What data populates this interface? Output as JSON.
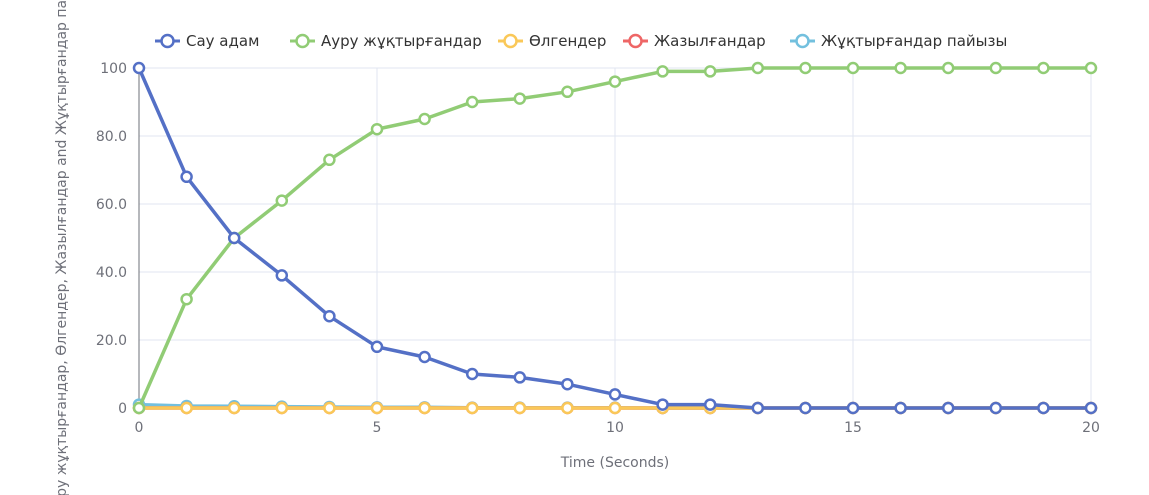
{
  "chart_data": {
    "type": "line",
    "xlabel": "Time (Seconds)",
    "ylabel": "Ауру жұқтырғандар, Өлгендер, Жазылғандар and Жұқтырғандар пайызы",
    "xlim": [
      0,
      20
    ],
    "ylim": [
      0,
      100
    ],
    "x_ticks": [
      "0",
      "5",
      "10",
      "15",
      "20"
    ],
    "y_ticks": [
      "0",
      "20.0",
      "40.0",
      "60.0",
      "80.0",
      "100"
    ],
    "grid": true,
    "legend_position": "top",
    "x": [
      0,
      1,
      2,
      3,
      4,
      5,
      6,
      7,
      8,
      9,
      10,
      11,
      12,
      13,
      14,
      15,
      16,
      17,
      18,
      19,
      20
    ],
    "series": [
      {
        "name": "Сау адам",
        "color": "#5470c6",
        "values": [
          100,
          68,
          50,
          39,
          27,
          18,
          15,
          10,
          9,
          7,
          4,
          1,
          1,
          0,
          0,
          0,
          0,
          0,
          0,
          0,
          0
        ]
      },
      {
        "name": "Ауру жұқтырғандар",
        "color": "#91cc75",
        "values": [
          0,
          32,
          50,
          61,
          73,
          82,
          85,
          90,
          91,
          93,
          96,
          99,
          99,
          100,
          100,
          100,
          100,
          100,
          100,
          100,
          100
        ]
      },
      {
        "name": "Өлгендер",
        "color": "#fac858",
        "values": [
          0,
          0,
          0,
          0,
          0,
          0,
          0,
          0,
          0,
          0,
          0,
          0,
          0,
          0,
          0,
          0,
          0,
          0,
          0,
          0,
          0
        ]
      },
      {
        "name": "Жазылғандар",
        "color": "#ee6666",
        "values": [
          0,
          0,
          0,
          0,
          0,
          0,
          0,
          0,
          0,
          0,
          0,
          0,
          0,
          0,
          0,
          0,
          0,
          0,
          0,
          0,
          0
        ]
      },
      {
        "name": "Жұқтырғандар пайызы",
        "color": "#73c0de",
        "values": [
          1,
          0.6,
          0.5,
          0.4,
          0.3,
          0.2,
          0.2,
          0.1,
          0.1,
          0.1,
          0.1,
          0,
          0,
          0,
          0,
          0,
          0,
          0,
          0,
          0,
          0
        ]
      }
    ]
  }
}
